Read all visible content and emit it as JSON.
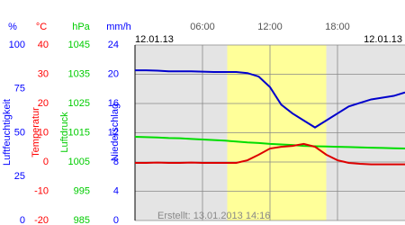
{
  "chart_data": {
    "type": "line",
    "date_left": "12.01.13",
    "date_right": "12.01.13",
    "created": "Erstellt: 13.01.2013 14:16",
    "xlim": [
      0,
      24
    ],
    "xticks": [
      {
        "value": 6,
        "label": "06:00"
      },
      {
        "value": 12,
        "label": "12:00"
      },
      {
        "value": 18,
        "label": "18:00"
      }
    ],
    "daylight": [
      8.2,
      17
    ],
    "grid": true,
    "yaxes": [
      {
        "unit": "%",
        "title": "Luftfeuchtigkeit",
        "color": "#0000ff",
        "ylim": [
          0,
          100
        ],
        "yticks": [
          0,
          25,
          50,
          75,
          100
        ]
      },
      {
        "unit": "°C",
        "title": "Temperatur",
        "color": "#ff0000",
        "ylim": [
          -20,
          40
        ],
        "yticks": [
          -20,
          -10,
          0,
          10,
          20,
          30,
          40
        ]
      },
      {
        "unit": "hPa",
        "title": "Luftdruck",
        "color": "#00cc00",
        "ylim": [
          985,
          1045
        ],
        "yticks": [
          985,
          995,
          1005,
          1015,
          1025,
          1035,
          1045
        ]
      },
      {
        "unit": "mm/h",
        "title": "Niederschlag",
        "color": "#0000ff",
        "ylim": [
          0,
          24
        ],
        "yticks": [
          0,
          4,
          8,
          12,
          16,
          20,
          24
        ]
      }
    ],
    "x": [
      0,
      1,
      2,
      3,
      4,
      5,
      6,
      7,
      8,
      9,
      10,
      11,
      12,
      13,
      14,
      15,
      16,
      17,
      18,
      19,
      20,
      21,
      22,
      23,
      24
    ],
    "series": [
      {
        "axis": 0,
        "color": "#0000cc",
        "values": [
          85.6,
          85.6,
          85.4,
          85,
          85,
          85,
          84.8,
          84.6,
          84.6,
          84.6,
          84,
          82,
          76,
          66,
          61,
          57,
          53,
          57,
          61,
          65,
          67,
          69,
          70,
          71,
          73
        ]
      },
      {
        "axis": 2,
        "color": "#00dd00",
        "values": [
          1013.6,
          1013.5,
          1013.4,
          1013.2,
          1013.1,
          1012.9,
          1012.7,
          1012.5,
          1012.3,
          1012,
          1011.7,
          1011.5,
          1011.2,
          1011,
          1010.8,
          1010.5,
          1010.4,
          1010.3,
          1010.2,
          1010.1,
          1010,
          1009.9,
          1009.8,
          1009.7,
          1009.6
        ]
      },
      {
        "axis": 1,
        "color": "#dd0000",
        "values": [
          -0.3,
          -0.3,
          -0.2,
          -0.3,
          -0.3,
          -0.2,
          -0.3,
          -0.3,
          -0.3,
          -0.3,
          0.6,
          2.5,
          4.6,
          5.2,
          5.5,
          6.2,
          5.2,
          2.5,
          0.6,
          -0.3,
          -0.6,
          -0.8,
          -0.8,
          -0.8,
          -0.8
        ]
      }
    ]
  }
}
